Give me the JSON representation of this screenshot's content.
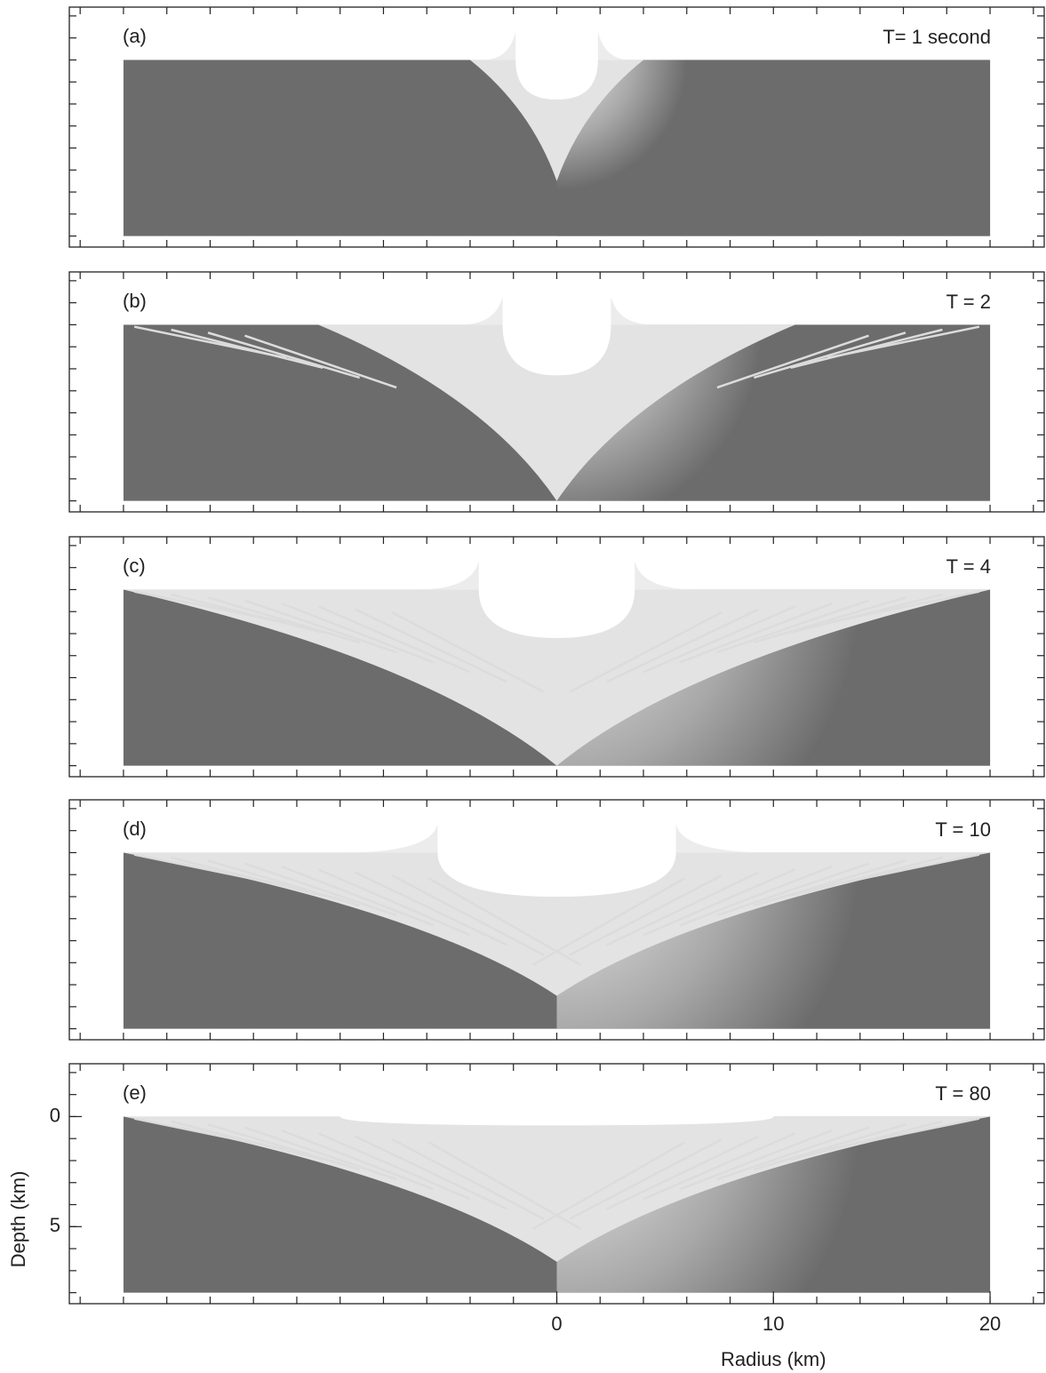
{
  "chart_data": [
    {
      "type": "image",
      "panel_label": "(a)",
      "title": "T= 1 second",
      "xlim": [
        -22.5,
        22.5
      ],
      "ylim": [
        -2.4,
        8.5
      ],
      "xminorticks": [
        -22,
        -20,
        -18,
        -16,
        -14,
        -12,
        -10,
        -8,
        -6,
        -4,
        -2,
        0,
        2,
        4,
        6,
        8,
        10,
        12,
        14,
        16,
        18,
        20,
        22
      ],
      "yminorticks": [
        -2,
        -1,
        0,
        1,
        2,
        3,
        4,
        5,
        6,
        7,
        8
      ]
    },
    {
      "type": "image",
      "panel_label": "(b)",
      "title": "T = 2",
      "xlim": [
        -22.5,
        22.5
      ],
      "ylim": [
        -2.4,
        8.5
      ],
      "xminorticks": [
        -22,
        -20,
        -18,
        -16,
        -14,
        -12,
        -10,
        -8,
        -6,
        -4,
        -2,
        0,
        2,
        4,
        6,
        8,
        10,
        12,
        14,
        16,
        18,
        20,
        22
      ],
      "yminorticks": [
        -2,
        -1,
        0,
        1,
        2,
        3,
        4,
        5,
        6,
        7,
        8
      ]
    },
    {
      "type": "image",
      "panel_label": "(c)",
      "title": "T = 4",
      "xlim": [
        -22.5,
        22.5
      ],
      "ylim": [
        -2.4,
        8.5
      ],
      "xminorticks": [
        -22,
        -20,
        -18,
        -16,
        -14,
        -12,
        -10,
        -8,
        -6,
        -4,
        -2,
        0,
        2,
        4,
        6,
        8,
        10,
        12,
        14,
        16,
        18,
        20,
        22
      ],
      "yminorticks": [
        -2,
        -1,
        0,
        1,
        2,
        3,
        4,
        5,
        6,
        7,
        8
      ]
    },
    {
      "type": "image",
      "panel_label": "(d)",
      "title": "T = 10",
      "xlim": [
        -22.5,
        22.5
      ],
      "ylim": [
        -2.4,
        8.5
      ],
      "xminorticks": [
        -22,
        -20,
        -18,
        -16,
        -14,
        -12,
        -10,
        -8,
        -6,
        -4,
        -2,
        0,
        2,
        4,
        6,
        8,
        10,
        12,
        14,
        16,
        18,
        20,
        22
      ],
      "yminorticks": [
        -2,
        -1,
        0,
        1,
        2,
        3,
        4,
        5,
        6,
        7,
        8
      ]
    },
    {
      "type": "image",
      "panel_label": "(e)",
      "title": "T = 80",
      "xlim": [
        -22.5,
        22.5
      ],
      "ylim": [
        -2.4,
        8.5
      ],
      "xminorticks": [
        -22,
        -20,
        -18,
        -16,
        -14,
        -12,
        -10,
        -8,
        -6,
        -4,
        -2,
        0,
        2,
        4,
        6,
        8,
        10,
        12,
        14,
        16,
        18,
        20,
        22
      ],
      "yminorticks": [
        -2,
        -1,
        0,
        1,
        2,
        3,
        4,
        5,
        6,
        7,
        8
      ],
      "xticks": [
        0,
        10,
        20
      ],
      "yticks": [
        0,
        5
      ],
      "xlabel": "Radius (km)",
      "ylabel": "Depth (km)"
    }
  ]
}
